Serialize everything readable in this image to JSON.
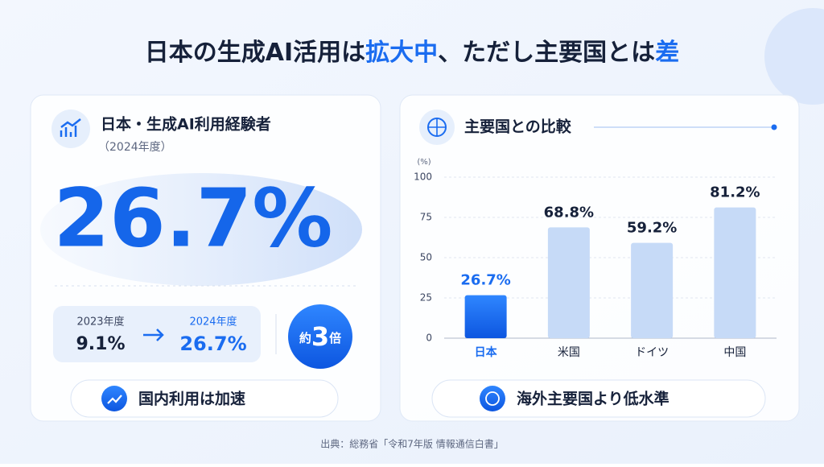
{
  "header": {
    "title_parts": [
      "日本の生成AI活用は",
      "拡大中",
      "、ただし主要国とは",
      "差"
    ]
  },
  "left": {
    "title": "日本・生成AI利用経験者",
    "subtitle": "（2024年度）",
    "headline": "26.7%",
    "from_label": "2023年度",
    "from_value": "9.1%",
    "to_label": "2024年度",
    "to_value": "26.7%",
    "badge_prefix": "約",
    "badge_number": "3",
    "badge_suffix": "倍",
    "footer": "国内利用は加速"
  },
  "chart_data": {
    "type": "bar",
    "title": "主要国との比較",
    "unit_label": "(%)",
    "categories": [
      "日本",
      "米国",
      "ドイツ",
      "中国"
    ],
    "values": [
      26.7,
      68.8,
      59.2,
      81.2
    ],
    "value_labels": [
      "26.7%",
      "68.8%",
      "59.2%",
      "81.2%"
    ],
    "colors": [
      "#1a6cf0",
      "#c6daf7",
      "#c6daf7",
      "#c6daf7"
    ],
    "ylim": [
      0,
      100
    ],
    "yticks": [
      0,
      25,
      50,
      75,
      100
    ],
    "grid": true
  },
  "right_footer": "海外主要国より低水準",
  "source": "出典：総務省「令和7年版 情報通信白書」"
}
